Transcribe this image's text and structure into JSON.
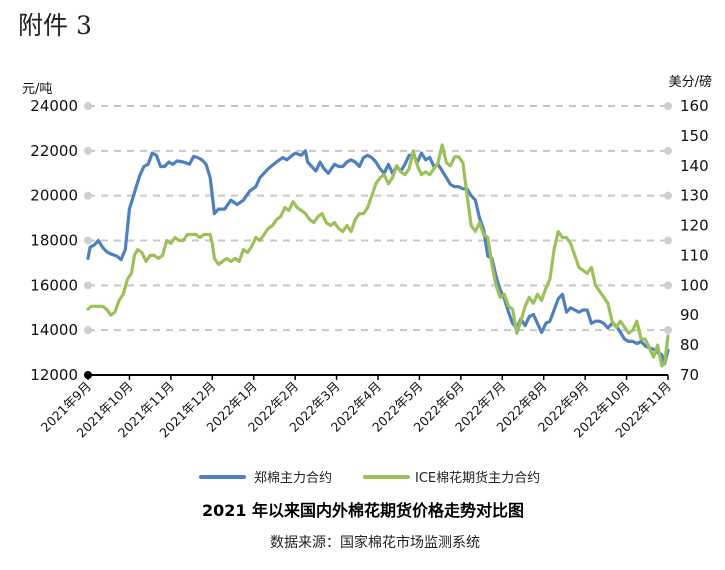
{
  "attachment_label": "附件 3",
  "chart_data": {
    "type": "line",
    "title": "2021 年以来国内外棉花期货价格走势对比图",
    "source": "数据来源：国家棉花市场监测系统",
    "left_axis": {
      "unit": "元/吨",
      "range": [
        12000,
        24000
      ],
      "ticks": [
        "24000",
        "22000",
        "20000",
        "18000",
        "16000",
        "14000",
        "12000"
      ]
    },
    "right_axis": {
      "unit": "美分/磅",
      "range": [
        70,
        160
      ],
      "ticks": [
        "160",
        "150",
        "140",
        "130",
        "120",
        "110",
        "100",
        "90",
        "80",
        "70"
      ]
    },
    "x_ticks": [
      "2021年9月",
      "2021年10月",
      "2021年11月",
      "2021年12月",
      "2022年1月",
      "2022年2月",
      "2022年3月",
      "2022年4月",
      "2022年5月",
      "2022年6月",
      "2022年7月",
      "2022年8月",
      "2022年9月",
      "2022年10月",
      "2022年11月"
    ],
    "grid": "horizontal dashed",
    "legend_position": "bottom",
    "series": [
      {
        "name": "郑棉主力合约",
        "axis": "left",
        "color": "#4e7fbf",
        "points": [
          [
            0.0,
            17200
          ],
          [
            0.05,
            17700
          ],
          [
            0.15,
            17800
          ],
          [
            0.25,
            18000
          ],
          [
            0.35,
            17700
          ],
          [
            0.45,
            17500
          ],
          [
            0.55,
            17400
          ],
          [
            0.7,
            17300
          ],
          [
            0.8,
            17150
          ],
          [
            0.9,
            17600
          ],
          [
            1.0,
            19400
          ],
          [
            1.15,
            20300
          ],
          [
            1.25,
            20900
          ],
          [
            1.35,
            21300
          ],
          [
            1.45,
            21400
          ],
          [
            1.55,
            21900
          ],
          [
            1.65,
            21800
          ],
          [
            1.75,
            21300
          ],
          [
            1.85,
            21300
          ],
          [
            1.95,
            21500
          ],
          [
            2.05,
            21400
          ],
          [
            2.15,
            21550
          ],
          [
            2.3,
            21500
          ],
          [
            2.45,
            21400
          ],
          [
            2.55,
            21750
          ],
          [
            2.65,
            21700
          ],
          [
            2.75,
            21600
          ],
          [
            2.85,
            21400
          ],
          [
            2.95,
            20800
          ],
          [
            3.05,
            19200
          ],
          [
            3.15,
            19400
          ],
          [
            3.3,
            19400
          ],
          [
            3.45,
            19800
          ],
          [
            3.6,
            19600
          ],
          [
            3.75,
            19800
          ],
          [
            3.9,
            20200
          ],
          [
            4.05,
            20400
          ],
          [
            4.15,
            20800
          ],
          [
            4.35,
            21200
          ],
          [
            4.55,
            21500
          ],
          [
            4.7,
            21700
          ],
          [
            4.8,
            21600
          ],
          [
            5.0,
            21900
          ],
          [
            5.15,
            21800
          ],
          [
            5.25,
            22000
          ],
          [
            5.3,
            21500
          ],
          [
            5.4,
            21300
          ],
          [
            5.5,
            21100
          ],
          [
            5.6,
            21500
          ],
          [
            5.7,
            21200
          ],
          [
            5.8,
            21000
          ],
          [
            5.95,
            21400
          ],
          [
            6.05,
            21300
          ],
          [
            6.15,
            21300
          ],
          [
            6.25,
            21500
          ],
          [
            6.35,
            21600
          ],
          [
            6.45,
            21500
          ],
          [
            6.55,
            21300
          ],
          [
            6.65,
            21700
          ],
          [
            6.75,
            21800
          ],
          [
            6.85,
            21700
          ],
          [
            6.95,
            21500
          ],
          [
            7.05,
            21200
          ],
          [
            7.15,
            21000
          ],
          [
            7.25,
            21400
          ],
          [
            7.35,
            21000
          ],
          [
            7.45,
            21300
          ],
          [
            7.55,
            21100
          ],
          [
            7.65,
            21400
          ],
          [
            7.75,
            21800
          ],
          [
            7.85,
            21800
          ],
          [
            7.95,
            21500
          ],
          [
            8.05,
            21900
          ],
          [
            8.15,
            21600
          ],
          [
            8.25,
            21700
          ],
          [
            8.35,
            21300
          ],
          [
            8.45,
            21400
          ],
          [
            8.55,
            21100
          ],
          [
            8.65,
            20800
          ],
          [
            8.75,
            20500
          ],
          [
            8.85,
            20400
          ],
          [
            8.95,
            20400
          ],
          [
            9.05,
            20300
          ],
          [
            9.15,
            20300
          ],
          [
            9.25,
            20000
          ],
          [
            9.35,
            19800
          ],
          [
            9.45,
            19000
          ],
          [
            9.55,
            18500
          ],
          [
            9.65,
            17300
          ],
          [
            9.75,
            17200
          ],
          [
            9.85,
            16400
          ],
          [
            9.95,
            15800
          ],
          [
            10.05,
            15400
          ],
          [
            10.15,
            14800
          ],
          [
            10.25,
            14300
          ],
          [
            10.35,
            14100
          ],
          [
            10.45,
            14500
          ],
          [
            10.55,
            14200
          ],
          [
            10.65,
            14600
          ],
          [
            10.75,
            14700
          ],
          [
            10.85,
            14300
          ],
          [
            10.95,
            13900
          ],
          [
            11.05,
            14300
          ],
          [
            11.15,
            14400
          ],
          [
            11.25,
            14900
          ],
          [
            11.35,
            15400
          ],
          [
            11.45,
            15600
          ],
          [
            11.55,
            14800
          ],
          [
            11.65,
            15000
          ],
          [
            11.75,
            14900
          ],
          [
            11.85,
            14800
          ],
          [
            11.95,
            14900
          ],
          [
            12.05,
            14900
          ],
          [
            12.15,
            14300
          ],
          [
            12.25,
            14400
          ],
          [
            12.35,
            14400
          ],
          [
            12.45,
            14300
          ],
          [
            12.55,
            14100
          ],
          [
            12.65,
            14300
          ],
          [
            12.75,
            14200
          ],
          [
            12.85,
            13900
          ],
          [
            12.95,
            13600
          ],
          [
            13.05,
            13500
          ],
          [
            13.15,
            13500
          ],
          [
            13.25,
            13400
          ],
          [
            13.35,
            13500
          ],
          [
            13.45,
            13300
          ],
          [
            13.55,
            13200
          ],
          [
            13.65,
            13150
          ],
          [
            13.75,
            13000
          ],
          [
            13.85,
            12900
          ],
          [
            13.92,
            12500
          ],
          [
            14.0,
            13100
          ]
        ]
      },
      {
        "name": "ICE棉花期货主力合约",
        "axis": "right",
        "color": "#9cc15a",
        "points": [
          [
            0.0,
            92
          ],
          [
            0.08,
            93
          ],
          [
            0.2,
            93
          ],
          [
            0.35,
            93
          ],
          [
            0.45,
            92
          ],
          [
            0.55,
            90
          ],
          [
            0.65,
            91
          ],
          [
            0.75,
            95
          ],
          [
            0.85,
            97
          ],
          [
            0.95,
            102
          ],
          [
            1.05,
            104
          ],
          [
            1.12,
            110
          ],
          [
            1.2,
            112
          ],
          [
            1.3,
            111
          ],
          [
            1.4,
            108
          ],
          [
            1.5,
            110
          ],
          [
            1.6,
            110
          ],
          [
            1.7,
            109
          ],
          [
            1.8,
            110
          ],
          [
            1.9,
            115
          ],
          [
            2.0,
            114
          ],
          [
            2.1,
            116
          ],
          [
            2.2,
            115
          ],
          [
            2.3,
            115
          ],
          [
            2.4,
            117
          ],
          [
            2.5,
            117
          ],
          [
            2.6,
            117
          ],
          [
            2.7,
            116
          ],
          [
            2.8,
            117
          ],
          [
            2.95,
            117
          ],
          [
            3.0,
            114
          ],
          [
            3.05,
            109
          ],
          [
            3.15,
            107
          ],
          [
            3.25,
            108
          ],
          [
            3.35,
            109
          ],
          [
            3.45,
            108
          ],
          [
            3.55,
            109
          ],
          [
            3.65,
            108
          ],
          [
            3.75,
            112
          ],
          [
            3.85,
            111
          ],
          [
            3.95,
            113
          ],
          [
            4.05,
            116
          ],
          [
            4.15,
            115
          ],
          [
            4.25,
            117
          ],
          [
            4.35,
            119
          ],
          [
            4.45,
            120
          ],
          [
            4.55,
            122
          ],
          [
            4.65,
            123
          ],
          [
            4.75,
            126
          ],
          [
            4.85,
            125
          ],
          [
            4.95,
            128
          ],
          [
            5.05,
            126
          ],
          [
            5.15,
            125
          ],
          [
            5.25,
            124
          ],
          [
            5.35,
            122
          ],
          [
            5.45,
            121
          ],
          [
            5.55,
            123
          ],
          [
            5.65,
            124
          ],
          [
            5.75,
            121
          ],
          [
            5.85,
            120
          ],
          [
            5.95,
            121
          ],
          [
            6.05,
            119
          ],
          [
            6.15,
            118
          ],
          [
            6.25,
            120
          ],
          [
            6.35,
            118
          ],
          [
            6.45,
            122
          ],
          [
            6.55,
            124
          ],
          [
            6.65,
            124
          ],
          [
            6.75,
            126
          ],
          [
            6.85,
            130
          ],
          [
            6.95,
            134
          ],
          [
            7.05,
            136
          ],
          [
            7.15,
            137
          ],
          [
            7.25,
            134
          ],
          [
            7.35,
            136
          ],
          [
            7.45,
            140
          ],
          [
            7.55,
            138
          ],
          [
            7.65,
            137
          ],
          [
            7.75,
            139
          ],
          [
            7.85,
            145
          ],
          [
            7.95,
            140
          ],
          [
            8.05,
            137
          ],
          [
            8.15,
            138
          ],
          [
            8.25,
            137
          ],
          [
            8.35,
            139
          ],
          [
            8.45,
            141
          ],
          [
            8.55,
            147
          ],
          [
            8.65,
            141
          ],
          [
            8.75,
            140
          ],
          [
            8.85,
            143
          ],
          [
            8.95,
            143
          ],
          [
            9.05,
            141
          ],
          [
            9.15,
            130
          ],
          [
            9.25,
            120
          ],
          [
            9.35,
            118
          ],
          [
            9.45,
            121
          ],
          [
            9.55,
            117
          ],
          [
            9.65,
            116
          ],
          [
            9.75,
            107
          ],
          [
            9.85,
            100
          ],
          [
            9.95,
            96
          ],
          [
            10.05,
            97
          ],
          [
            10.15,
            93
          ],
          [
            10.25,
            92
          ],
          [
            10.35,
            84
          ],
          [
            10.45,
            88
          ],
          [
            10.55,
            93
          ],
          [
            10.65,
            96
          ],
          [
            10.75,
            94
          ],
          [
            10.85,
            97
          ],
          [
            10.95,
            95
          ],
          [
            11.05,
            99
          ],
          [
            11.15,
            102
          ],
          [
            11.25,
            112
          ],
          [
            11.35,
            118
          ],
          [
            11.45,
            116
          ],
          [
            11.55,
            116
          ],
          [
            11.65,
            114
          ],
          [
            11.75,
            110
          ],
          [
            11.85,
            106
          ],
          [
            11.95,
            105
          ],
          [
            12.05,
            104
          ],
          [
            12.15,
            106
          ],
          [
            12.25,
            100
          ],
          [
            12.35,
            98
          ],
          [
            12.45,
            96
          ],
          [
            12.55,
            94
          ],
          [
            12.65,
            88
          ],
          [
            12.75,
            86
          ],
          [
            12.85,
            88
          ],
          [
            12.95,
            86
          ],
          [
            13.05,
            84
          ],
          [
            13.15,
            85
          ],
          [
            13.25,
            88
          ],
          [
            13.35,
            82
          ],
          [
            13.45,
            82
          ],
          [
            13.55,
            79
          ],
          [
            13.65,
            76
          ],
          [
            13.75,
            80
          ],
          [
            13.85,
            73
          ],
          [
            13.92,
            74
          ],
          [
            14.0,
            83
          ]
        ]
      }
    ]
  }
}
